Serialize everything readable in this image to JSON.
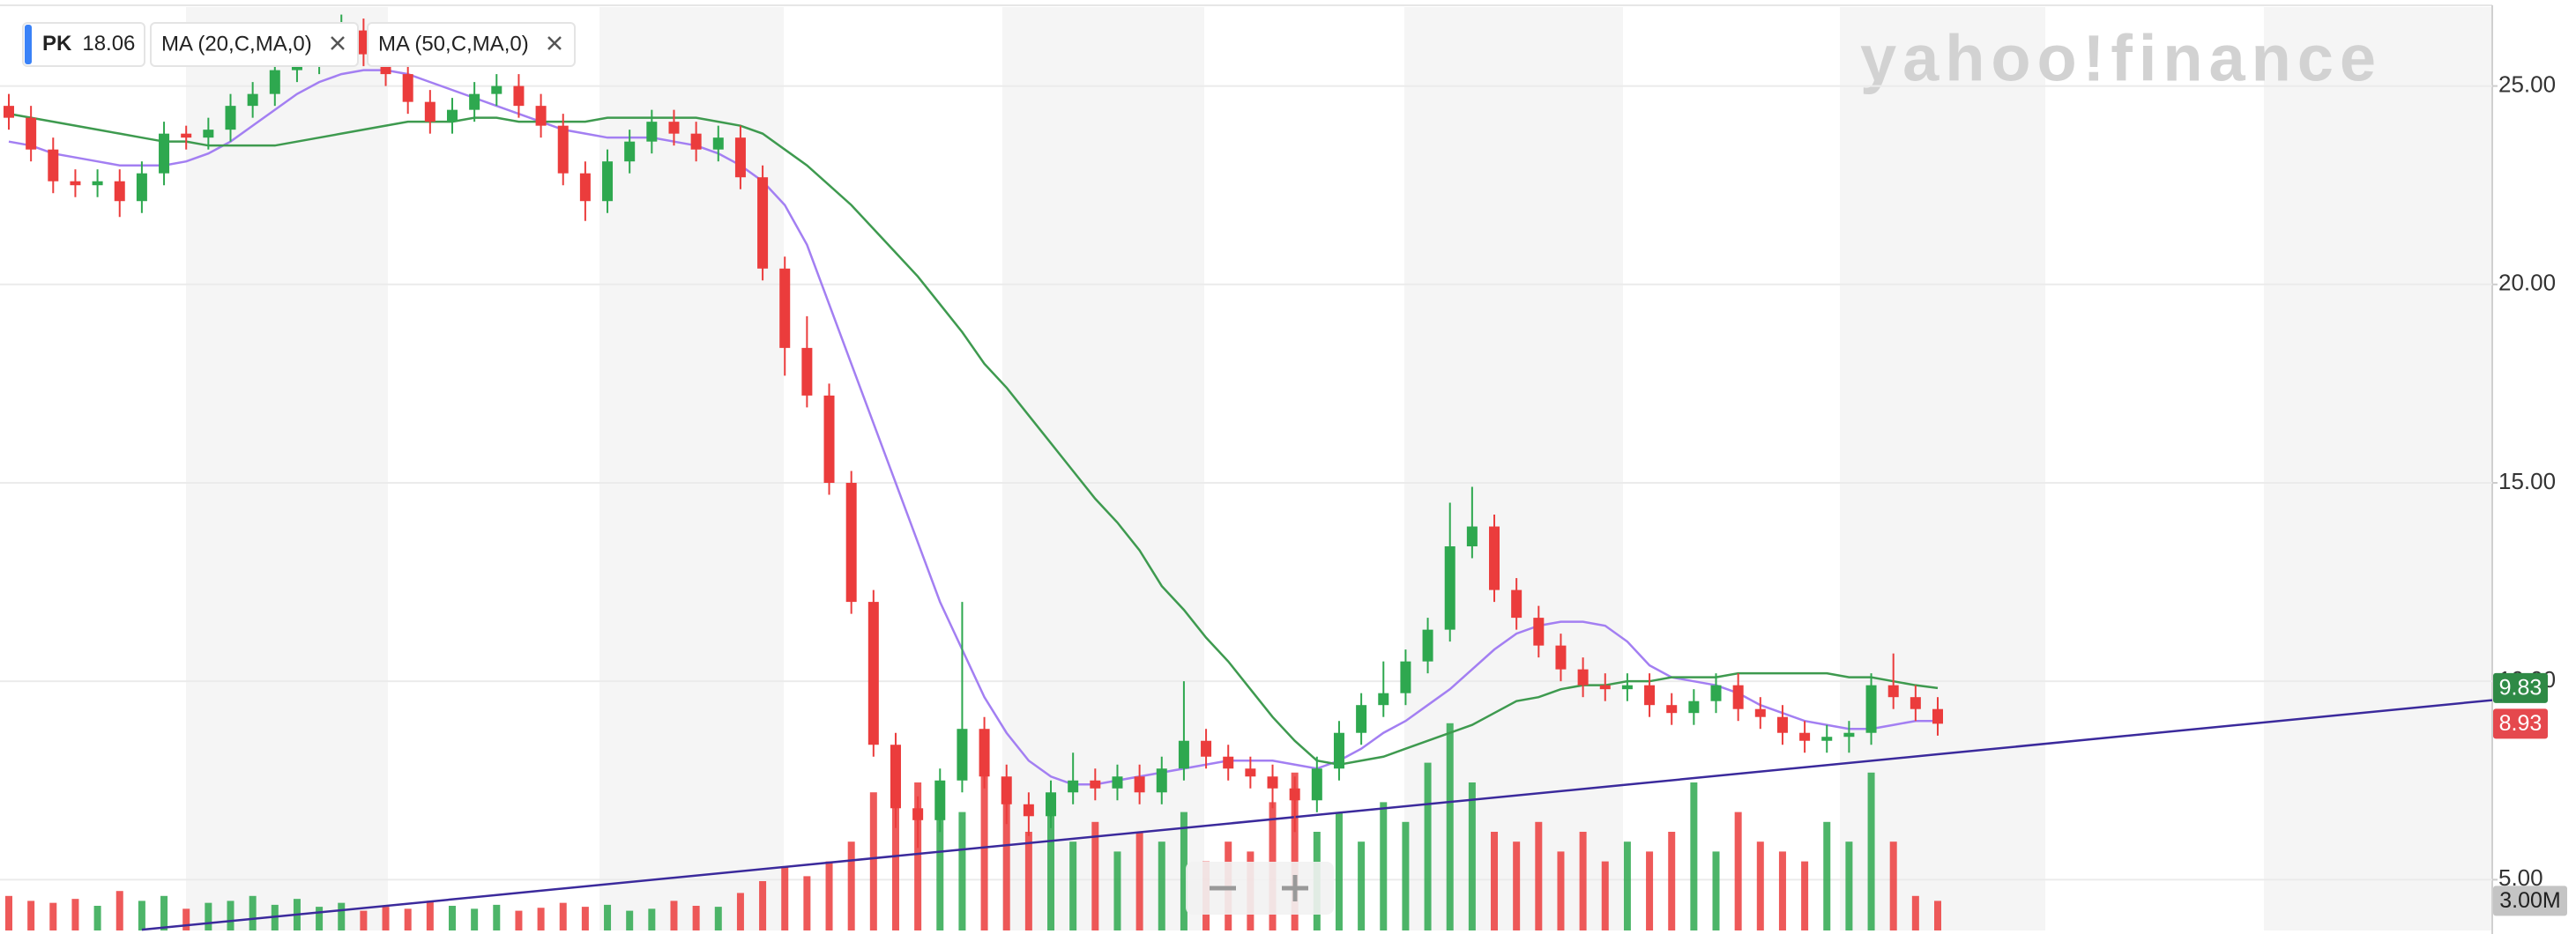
{
  "chart_data": {
    "type": "candlestick",
    "symbol": "PK",
    "symbol_price": 18.06,
    "watermark": "yahoo!finance",
    "up_color": "#2ea84f",
    "down_color": "#eb3c3c",
    "categories": [
      null,
      null,
      null,
      null,
      null,
      null,
      null,
      null,
      null,
      null,
      null,
      null,
      null,
      null,
      null,
      null,
      null,
      null,
      null,
      null,
      null,
      null,
      null,
      null,
      null,
      null,
      null,
      null,
      null,
      null,
      null,
      null,
      null,
      null,
      null,
      null,
      null,
      null,
      null,
      null,
      null,
      null,
      null,
      null,
      null,
      null,
      null,
      null,
      null,
      null,
      null,
      null,
      null,
      null,
      null,
      null,
      null,
      null,
      null,
      null,
      null,
      null,
      null,
      null,
      null,
      null,
      null,
      null,
      null,
      null,
      null,
      null,
      null,
      null,
      null,
      null,
      null,
      null,
      null,
      null,
      null,
      null,
      null,
      null,
      null,
      null,
      null,
      null
    ],
    "open": [
      24.5,
      24.2,
      23.4,
      22.6,
      22.5,
      22.6,
      22.1,
      22.8,
      23.8,
      23.7,
      23.9,
      24.5,
      24.8,
      25.4,
      25.6,
      26.0,
      26.4,
      25.8,
      25.3,
      24.6,
      24.1,
      24.4,
      24.8,
      25.0,
      24.5,
      24.0,
      22.8,
      22.1,
      23.1,
      23.6,
      24.1,
      23.8,
      23.4,
      23.7,
      22.7,
      20.4,
      18.4,
      17.2,
      15.0,
      12.0,
      8.4,
      6.8,
      6.5,
      7.5,
      8.8,
      7.6,
      6.9,
      6.6,
      7.2,
      7.5,
      7.3,
      7.6,
      7.2,
      7.8,
      8.5,
      8.1,
      7.8,
      7.6,
      7.3,
      7.0,
      7.8,
      8.7,
      9.4,
      9.7,
      10.5,
      11.3,
      13.4,
      13.9,
      12.3,
      11.6,
      10.9,
      10.3,
      9.9,
      9.8,
      9.9,
      9.4,
      9.2,
      9.5,
      9.9,
      9.3,
      9.1,
      8.7,
      8.5,
      8.6,
      8.7,
      9.9,
      9.6,
      9.3
    ],
    "high": [
      24.8,
      24.5,
      23.7,
      22.9,
      22.9,
      22.9,
      23.1,
      24.1,
      24.0,
      24.2,
      24.8,
      25.1,
      25.7,
      25.9,
      26.3,
      26.8,
      26.7,
      26.1,
      25.6,
      24.9,
      24.7,
      25.1,
      25.3,
      25.3,
      24.8,
      24.3,
      23.1,
      23.4,
      23.9,
      24.4,
      24.4,
      24.1,
      24.0,
      24.0,
      23.0,
      20.7,
      19.2,
      17.5,
      15.3,
      12.3,
      8.7,
      7.1,
      7.8,
      12.0,
      9.1,
      7.9,
      7.2,
      7.5,
      8.2,
      7.8,
      7.9,
      7.9,
      8.1,
      10.0,
      8.8,
      8.4,
      8.1,
      7.9,
      7.6,
      8.1,
      9.0,
      9.7,
      10.5,
      10.8,
      11.6,
      14.5,
      14.9,
      14.2,
      12.6,
      11.9,
      11.2,
      10.6,
      10.2,
      10.2,
      10.2,
      9.7,
      9.8,
      10.2,
      10.2,
      9.6,
      9.4,
      9.0,
      8.9,
      9.0,
      10.2,
      10.7,
      9.9,
      9.6
    ],
    "low": [
      23.9,
      23.1,
      22.3,
      22.2,
      22.2,
      21.7,
      21.8,
      22.5,
      23.4,
      23.4,
      23.6,
      24.2,
      24.5,
      25.1,
      25.3,
      25.7,
      25.5,
      25.0,
      24.3,
      23.8,
      23.8,
      24.1,
      24.5,
      24.2,
      23.7,
      22.5,
      21.6,
      21.8,
      22.8,
      23.3,
      23.5,
      23.1,
      23.1,
      22.4,
      20.1,
      17.7,
      16.9,
      14.7,
      11.7,
      8.1,
      6.3,
      5.8,
      6.2,
      7.2,
      7.3,
      6.4,
      6.1,
      6.3,
      6.9,
      7.0,
      7.0,
      6.9,
      6.9,
      7.5,
      7.8,
      7.5,
      7.3,
      6.8,
      6.2,
      6.7,
      7.5,
      8.4,
      9.1,
      9.4,
      10.2,
      11.0,
      13.1,
      12.0,
      11.3,
      10.6,
      10.0,
      9.6,
      9.5,
      9.5,
      9.1,
      8.9,
      8.9,
      9.2,
      9.0,
      8.8,
      8.4,
      8.2,
      8.2,
      8.2,
      8.4,
      9.3,
      9.0,
      8.63
    ],
    "close": [
      24.2,
      23.4,
      22.6,
      22.5,
      22.6,
      22.1,
      22.8,
      23.8,
      23.7,
      23.9,
      24.5,
      24.8,
      25.4,
      25.6,
      26.0,
      26.4,
      25.8,
      25.3,
      24.6,
      24.1,
      24.4,
      24.8,
      25.0,
      24.5,
      24.0,
      22.8,
      22.1,
      23.1,
      23.6,
      24.1,
      23.8,
      23.4,
      23.7,
      22.7,
      20.4,
      18.4,
      17.2,
      15.0,
      12.0,
      8.4,
      6.8,
      6.5,
      7.5,
      8.8,
      7.6,
      6.9,
      6.6,
      7.2,
      7.5,
      7.3,
      7.6,
      7.2,
      7.8,
      8.5,
      8.1,
      7.8,
      7.6,
      7.3,
      7.0,
      7.8,
      8.7,
      9.4,
      9.7,
      10.5,
      11.3,
      13.4,
      13.9,
      12.3,
      11.6,
      10.9,
      10.3,
      9.9,
      9.8,
      9.9,
      9.4,
      9.2,
      9.5,
      9.9,
      9.3,
      9.1,
      8.7,
      8.5,
      8.6,
      8.7,
      9.9,
      9.6,
      9.3,
      8.93
    ],
    "volume": [
      3500000,
      3000000,
      2800000,
      3200000,
      2500000,
      4000000,
      3000000,
      3500000,
      2200000,
      2800000,
      3000000,
      3500000,
      2600000,
      3200000,
      2400000,
      2800000,
      2000000,
      2400000,
      2200000,
      3000000,
      2500000,
      2200000,
      2600000,
      2000000,
      2300000,
      2800000,
      2400000,
      2600000,
      2000000,
      2200000,
      3000000,
      2500000,
      2400000,
      3800000,
      5000000,
      6500000,
      5500000,
      7000000,
      9000000,
      14000000,
      17000000,
      15000000,
      13000000,
      12000000,
      16000000,
      14000000,
      10000000,
      13000000,
      9000000,
      11000000,
      8000000,
      10000000,
      9000000,
      12000000,
      7000000,
      9000000,
      8000000,
      13000000,
      16000000,
      10000000,
      12000000,
      9000000,
      13000000,
      11000000,
      17000000,
      21000000,
      15000000,
      10000000,
      9000000,
      11000000,
      8000000,
      10000000,
      7000000,
      9000000,
      8000000,
      10000000,
      15000000,
      8000000,
      12000000,
      9000000,
      8000000,
      7000000,
      11000000,
      9000000,
      16000000,
      9000000,
      3500000,
      3000000
    ],
    "series": [
      {
        "name": "MA (20,C,MA,0)",
        "color": "#a37ff2",
        "values": [
          23.6,
          23.5,
          23.3,
          23.2,
          23.1,
          23.0,
          23.0,
          23.0,
          23.1,
          23.3,
          23.6,
          24.0,
          24.4,
          24.8,
          25.1,
          25.3,
          25.4,
          25.4,
          25.3,
          25.1,
          24.9,
          24.7,
          24.5,
          24.3,
          24.1,
          23.9,
          23.8,
          23.7,
          23.7,
          23.7,
          23.6,
          23.5,
          23.3,
          23.0,
          22.6,
          22.0,
          21.0,
          19.5,
          18.0,
          16.5,
          15.0,
          13.5,
          12.0,
          10.8,
          9.6,
          8.7,
          8.0,
          7.6,
          7.4,
          7.4,
          7.5,
          7.6,
          7.7,
          7.8,
          7.9,
          8.0,
          8.0,
          8.0,
          7.9,
          7.8,
          8.0,
          8.3,
          8.7,
          9.0,
          9.4,
          9.8,
          10.3,
          10.8,
          11.2,
          11.4,
          11.5,
          11.5,
          11.4,
          11.0,
          10.4,
          10.1,
          10.0,
          9.9,
          9.7,
          9.4,
          9.2,
          9.0,
          8.9,
          8.8,
          8.8,
          8.9,
          9.0,
          9.0
        ]
      },
      {
        "name": "MA (50,C,MA,0)",
        "color": "#3e9a4f",
        "values": [
          24.3,
          24.2,
          24.1,
          24.0,
          23.9,
          23.8,
          23.7,
          23.6,
          23.6,
          23.5,
          23.5,
          23.5,
          23.5,
          23.6,
          23.7,
          23.8,
          23.9,
          24.0,
          24.1,
          24.1,
          24.1,
          24.2,
          24.2,
          24.1,
          24.1,
          24.1,
          24.1,
          24.2,
          24.2,
          24.2,
          24.2,
          24.2,
          24.1,
          24.0,
          23.8,
          23.4,
          23.0,
          22.5,
          22.0,
          21.4,
          20.8,
          20.2,
          19.5,
          18.8,
          18.0,
          17.4,
          16.7,
          16.0,
          15.3,
          14.6,
          14.0,
          13.3,
          12.4,
          11.8,
          11.1,
          10.5,
          9.8,
          9.1,
          8.5,
          8.0,
          7.9,
          8.0,
          8.1,
          8.3,
          8.5,
          8.7,
          8.9,
          9.2,
          9.5,
          9.6,
          9.8,
          9.9,
          9.9,
          10.0,
          10.0,
          10.1,
          10.1,
          10.1,
          10.2,
          10.2,
          10.2,
          10.2,
          10.2,
          10.1,
          10.1,
          10.0,
          9.9,
          9.83
        ]
      }
    ],
    "trendline": {
      "color": "#3b2a9c",
      "values": [
        null,
        null,
        null,
        null,
        null,
        null,
        3.74,
        null,
        null,
        null,
        null,
        null,
        null,
        null,
        null,
        null,
        null,
        null,
        null,
        null,
        null,
        null,
        null,
        null,
        null,
        null,
        null,
        null,
        null,
        null,
        null,
        null,
        null,
        null,
        null,
        null,
        null,
        null,
        null,
        null,
        null,
        null,
        null,
        null,
        null,
        null,
        null,
        null,
        null,
        null,
        null,
        null,
        null,
        null,
        null,
        null,
        null,
        null,
        null,
        null,
        null,
        null,
        null,
        null,
        null,
        null,
        null,
        null,
        null,
        null,
        null,
        null,
        null,
        null,
        null,
        null,
        null,
        null,
        null,
        null,
        null,
        null,
        null,
        null,
        null,
        null,
        null,
        8.16
      ]
    },
    "ylim": [
      3.72,
      26.99
    ],
    "yticks": [
      {
        "value": 5,
        "label": "5.00"
      },
      {
        "value": 10,
        "label": "10.00"
      },
      {
        "value": 15,
        "label": "15.00"
      },
      {
        "value": 20,
        "label": "20.00"
      },
      {
        "value": 25,
        "label": "25.00"
      }
    ],
    "y2lim": [
      0,
      25000000
    ],
    "y2ticks": [
      {
        "value": 3000000,
        "label": "3.00M"
      }
    ],
    "grid": true
  }
}
